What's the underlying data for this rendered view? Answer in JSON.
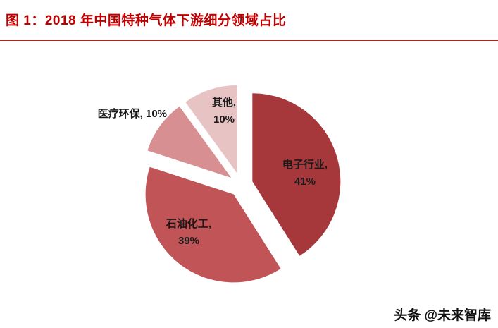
{
  "title": "图 1：2018 年中国特种气体下游细分领域占比",
  "watermark": "头条 @未来智库",
  "accent": {
    "title_color": "#C00000",
    "rule_color": "#9E2B25",
    "label_color": "#1a1a1a"
  },
  "chart_data": {
    "type": "pie",
    "title": "2018 年中国特种气体下游细分领域占比",
    "labels": [
      "电子行业",
      "石油化工",
      "医疗环保",
      "其他"
    ],
    "values": [
      41,
      39,
      10,
      10
    ],
    "unit": "%",
    "colors": [
      "#A6383C",
      "#C05457",
      "#D88F91",
      "#E7C3C4"
    ],
    "slice_labels": [
      "电子行业, 41%",
      "石油化工, 39%",
      "医疗环保, 10%",
      "其他, 10%"
    ],
    "start_angle_deg": -90,
    "direction": "clockwise",
    "exploded": true,
    "legend": "none",
    "data_labels": "inside-or-adjacent"
  }
}
